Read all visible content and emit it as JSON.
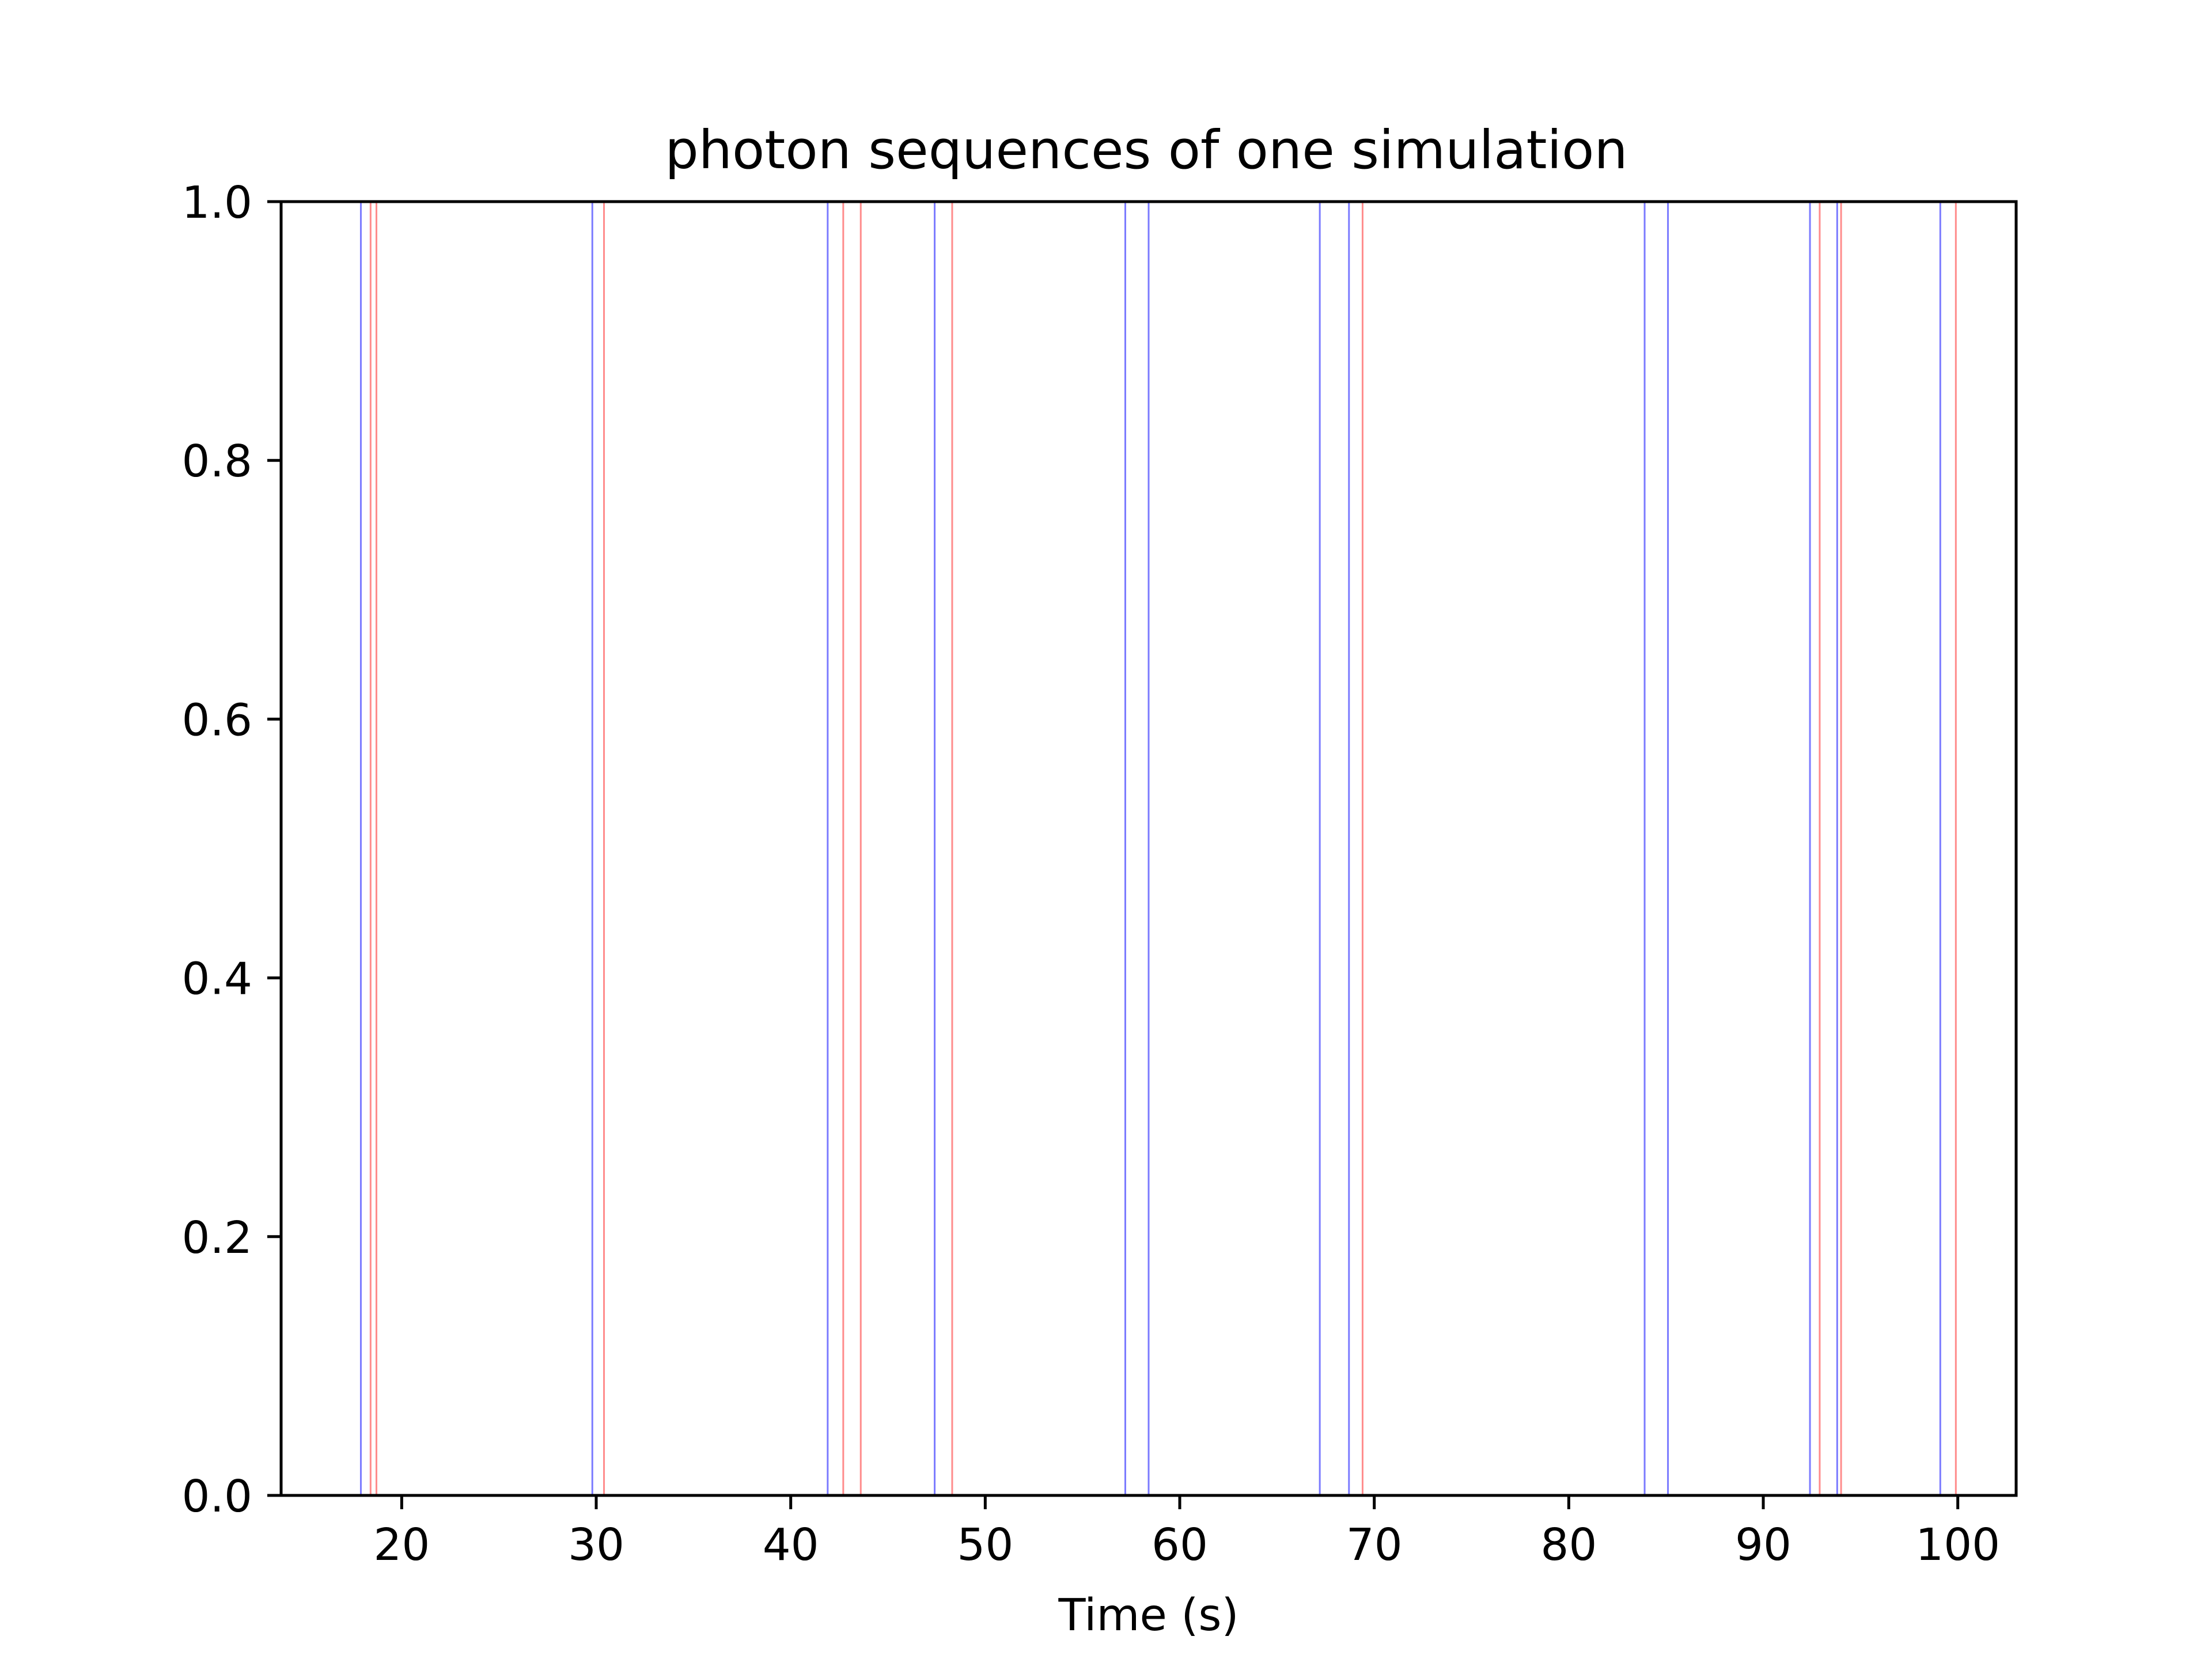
{
  "chart_data": {
    "type": "event-lines",
    "title": "photon sequences of one simulation",
    "xlabel": "Time (s)",
    "ylabel": "",
    "xlim": [
      13.8,
      103.0
    ],
    "ylim": [
      0.0,
      1.0
    ],
    "x_ticks": [
      20,
      30,
      40,
      50,
      60,
      70,
      80,
      90,
      100
    ],
    "y_ticks": [
      0.0,
      0.2,
      0.4,
      0.6,
      0.8,
      1.0
    ],
    "y_tick_labels": [
      "0.0",
      "0.2",
      "0.4",
      "0.6",
      "0.8",
      "1.0"
    ],
    "grid": false,
    "legend": "none",
    "series": [
      {
        "color": "#7b7bff",
        "x": [
          17.9,
          29.8,
          41.9,
          47.4,
          57.2,
          58.4,
          67.2,
          68.7,
          83.9,
          85.1,
          92.4,
          93.8,
          99.1
        ]
      },
      {
        "color": "#ff8c8c",
        "x": [
          18.4,
          18.7,
          30.4,
          42.7,
          43.6,
          48.3,
          69.4,
          92.9,
          94.0,
          99.9
        ]
      }
    ]
  }
}
